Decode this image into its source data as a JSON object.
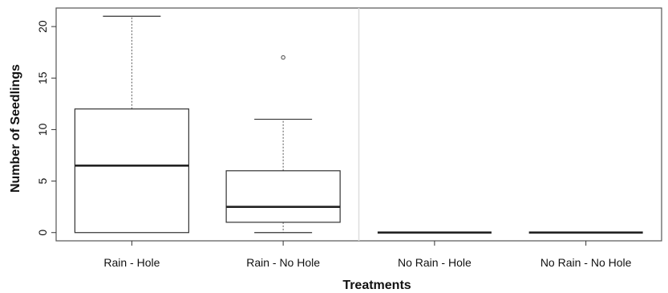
{
  "chart_data": {
    "type": "boxplot",
    "title": "",
    "xlabel": "Treatments",
    "ylabel": "Number of Seedlings",
    "categories": [
      "Rain - Hole",
      "Rain - No Hole",
      "No Rain - Hole",
      "No Rain - No Hole"
    ],
    "boxes": [
      {
        "category": "Rain - Hole",
        "min": 0,
        "q1": 0,
        "median": 6.5,
        "q3": 12,
        "max": 21,
        "outliers": []
      },
      {
        "category": "Rain - No Hole",
        "min": 0,
        "q1": 1,
        "median": 2.5,
        "q3": 6,
        "max": 11,
        "outliers": [
          17
        ]
      },
      {
        "category": "No Rain - Hole",
        "min": 0,
        "q1": 0,
        "median": 0,
        "q3": 0,
        "max": 0,
        "outliers": []
      },
      {
        "category": "No Rain - No Hole",
        "min": 0,
        "q1": 0,
        "median": 0,
        "q3": 0,
        "max": 0,
        "outliers": []
      }
    ],
    "y_ticks": [
      0,
      5,
      10,
      15,
      20
    ],
    "ylim": [
      -0.8,
      21.8
    ],
    "grid": false
  }
}
